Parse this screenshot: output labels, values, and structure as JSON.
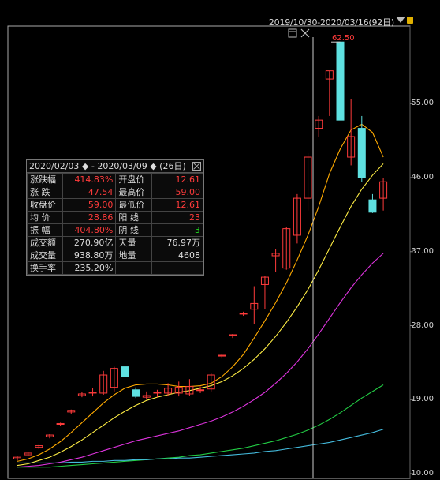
{
  "header": {
    "date_range": "2019/10/30-2020/03/16(92日)"
  },
  "crosshair": {
    "price_label": "62.50"
  },
  "info_panel": {
    "title": "2020/02/03 ◆ - 2020/03/09 ◆ (26日)",
    "rows": [
      {
        "k1": "涨跌幅",
        "v1": "414.83%",
        "c1": "red",
        "k2": "开盘价",
        "v2": "12.61",
        "c2": "red"
      },
      {
        "k1": "涨  跌",
        "v1": "47.54",
        "c1": "red",
        "k2": "最高价",
        "v2": "59.00",
        "c2": "red"
      },
      {
        "k1": "收盘价",
        "v1": "59.00",
        "c1": "red",
        "k2": "最低价",
        "v2": "12.61",
        "c2": "red"
      },
      {
        "k1": "均  价",
        "v1": "28.86",
        "c1": "red",
        "k2": "阳  线",
        "v2": "23",
        "c2": "red"
      },
      {
        "k1": "振  幅",
        "v1": "404.80%",
        "c1": "red",
        "k2": "阴  线",
        "v2": "3",
        "c2": "green"
      },
      {
        "k1": "成交额",
        "v1": "270.90亿",
        "c1": "white",
        "k2": "天量",
        "v2": "76.97万",
        "c2": "white"
      },
      {
        "k1": "成交量",
        "v1": "938.80万",
        "c1": "white",
        "k2": "地量",
        "v2": "4608",
        "c2": "white"
      },
      {
        "k1": "换手率",
        "v1": "235.20%",
        "c1": "white",
        "k2": "",
        "v2": "",
        "c2": "white"
      }
    ]
  },
  "colors": {
    "up": "#ff3b3b",
    "down": "#5ee0e0",
    "ma1": "#ffaa00",
    "ma2": "#ffee44",
    "ma3": "#dd33dd",
    "ma4": "#22cc44",
    "ma5": "#44bbdd"
  },
  "chart_data": {
    "type": "candlestick",
    "y_ticks": [
      "55.00",
      "46.00",
      "37.00",
      "28.00",
      "19.00",
      "10.00"
    ],
    "y_tick_values": [
      55,
      46,
      37,
      28,
      19,
      10
    ],
    "ylim": [
      10,
      63
    ],
    "candles": [
      {
        "o": 11.8,
        "h": 12.1,
        "l": 11.6,
        "c": 12.0
      },
      {
        "o": 12.3,
        "h": 12.6,
        "l": 12.1,
        "c": 12.5
      },
      {
        "o": 13.2,
        "h": 13.5,
        "l": 13.0,
        "c": 13.4
      },
      {
        "o": 14.5,
        "h": 14.8,
        "l": 14.3,
        "c": 14.7
      },
      {
        "o": 16.0,
        "h": 16.2,
        "l": 15.8,
        "c": 16.1
      },
      {
        "o": 17.5,
        "h": 17.8,
        "l": 17.3,
        "c": 17.7
      },
      {
        "o": 19.5,
        "h": 19.9,
        "l": 19.3,
        "c": 19.7
      },
      {
        "o": 19.8,
        "h": 20.4,
        "l": 19.4,
        "c": 19.9
      },
      {
        "o": 19.8,
        "h": 22.5,
        "l": 19.6,
        "c": 22.0
      },
      {
        "o": 20.5,
        "h": 23.0,
        "l": 20.0,
        "c": 22.8
      },
      {
        "o": 23.0,
        "h": 24.5,
        "l": 20.6,
        "c": 21.8
      },
      {
        "o": 20.2,
        "h": 20.5,
        "l": 19.2,
        "c": 19.4
      },
      {
        "o": 19.3,
        "h": 20.0,
        "l": 19.0,
        "c": 19.5
      },
      {
        "o": 19.8,
        "h": 20.2,
        "l": 19.3,
        "c": 19.9
      },
      {
        "o": 19.8,
        "h": 21.0,
        "l": 19.5,
        "c": 20.4
      },
      {
        "o": 19.8,
        "h": 21.2,
        "l": 19.4,
        "c": 20.5
      },
      {
        "o": 19.7,
        "h": 21.5,
        "l": 19.5,
        "c": 20.6
      },
      {
        "o": 20.2,
        "h": 20.6,
        "l": 19.8,
        "c": 20.2
      },
      {
        "o": 20.3,
        "h": 22.2,
        "l": 20.0,
        "c": 22.0
      },
      {
        "o": 24.3,
        "h": 24.6,
        "l": 24.0,
        "c": 24.4
      },
      {
        "o": 26.8,
        "h": 27.0,
        "l": 26.5,
        "c": 26.9
      },
      {
        "o": 29.5,
        "h": 29.7,
        "l": 29.2,
        "c": 29.5
      },
      {
        "o": 30.0,
        "h": 32.8,
        "l": 28.2,
        "c": 30.7
      },
      {
        "o": 33.0,
        "h": 34.0,
        "l": 30.0,
        "c": 33.9
      },
      {
        "o": 36.5,
        "h": 37.3,
        "l": 34.5,
        "c": 36.8
      },
      {
        "o": 35.0,
        "h": 40.0,
        "l": 34.8,
        "c": 39.8
      },
      {
        "o": 39.0,
        "h": 44.0,
        "l": 38.0,
        "c": 43.5
      },
      {
        "o": 43.5,
        "h": 49.0,
        "l": 42.0,
        "c": 48.5
      },
      {
        "o": 52.0,
        "h": 53.5,
        "l": 51.0,
        "c": 53.0
      },
      {
        "o": 58.0,
        "h": 59.0,
        "l": 53.5,
        "c": 59.0
      },
      {
        "o": 62.5,
        "h": 62.5,
        "l": 53.0,
        "c": 53.0
      },
      {
        "o": 48.5,
        "h": 55.6,
        "l": 47.5,
        "c": 51.0
      },
      {
        "o": 52.0,
        "h": 53.5,
        "l": 45.5,
        "c": 46.0
      },
      {
        "o": 43.3,
        "h": 44.0,
        "l": 41.7,
        "c": 41.8
      },
      {
        "o": 43.5,
        "h": 46.0,
        "l": 42.0,
        "c": 45.5
      }
    ],
    "candle_x_index": [
      0,
      1,
      2,
      3,
      4,
      5,
      6,
      7,
      8,
      9,
      10,
      11,
      12,
      13,
      14,
      15,
      16,
      17,
      18,
      19,
      20,
      21,
      22,
      23,
      24,
      25,
      26,
      27,
      28,
      29,
      30,
      31,
      32,
      33,
      34
    ],
    "ma_series": [
      {
        "key": "ma1",
        "values": [
          11.5,
          11.8,
          12.3,
          13.0,
          13.9,
          15.0,
          16.2,
          17.4,
          18.6,
          19.6,
          20.4,
          20.8,
          20.9,
          20.9,
          20.8,
          20.6,
          20.6,
          20.7,
          21.0,
          21.8,
          23.0,
          24.5,
          26.5,
          28.6,
          30.8,
          33.2,
          36.0,
          39.0,
          42.5,
          46.5,
          49.5,
          51.8,
          52.5,
          51.5,
          48.5
        ]
      },
      {
        "key": "ma2",
        "values": [
          11.0,
          11.2,
          11.6,
          12.0,
          12.6,
          13.3,
          14.1,
          15.0,
          15.9,
          16.8,
          17.6,
          18.3,
          18.9,
          19.3,
          19.6,
          19.9,
          20.1,
          20.4,
          20.7,
          21.2,
          21.9,
          22.8,
          23.9,
          25.2,
          26.7,
          28.4,
          30.3,
          32.4,
          34.8,
          37.4,
          40.0,
          42.5,
          44.6,
          46.3,
          47.7
        ]
      },
      {
        "key": "ma3",
        "values": [
          10.8,
          10.9,
          11.0,
          11.2,
          11.4,
          11.7,
          12.0,
          12.4,
          12.8,
          13.2,
          13.6,
          14.0,
          14.3,
          14.6,
          14.9,
          15.2,
          15.6,
          16.0,
          16.4,
          16.9,
          17.5,
          18.2,
          19.0,
          19.9,
          21.0,
          22.2,
          23.6,
          25.2,
          27.0,
          28.9,
          30.8,
          32.6,
          34.2,
          35.6,
          36.8
        ]
      },
      {
        "key": "ma4",
        "values": [
          10.8,
          10.8,
          10.8,
          10.8,
          10.9,
          11.0,
          11.1,
          11.2,
          11.3,
          11.4,
          11.5,
          11.6,
          11.7,
          11.8,
          11.9,
          12.0,
          12.2,
          12.3,
          12.5,
          12.7,
          12.9,
          13.1,
          13.4,
          13.7,
          14.0,
          14.4,
          14.8,
          15.3,
          15.9,
          16.6,
          17.4,
          18.3,
          19.2,
          20.0,
          20.8
        ]
      },
      {
        "key": "ma5",
        "values": [
          11.3,
          11.3,
          11.3,
          11.3,
          11.3,
          11.4,
          11.4,
          11.5,
          11.5,
          11.6,
          11.6,
          11.7,
          11.7,
          11.8,
          11.8,
          11.9,
          11.9,
          12.0,
          12.1,
          12.2,
          12.3,
          12.4,
          12.5,
          12.7,
          12.8,
          13.0,
          13.2,
          13.4,
          13.6,
          13.8,
          14.1,
          14.4,
          14.7,
          15.0,
          15.4
        ]
      }
    ]
  }
}
